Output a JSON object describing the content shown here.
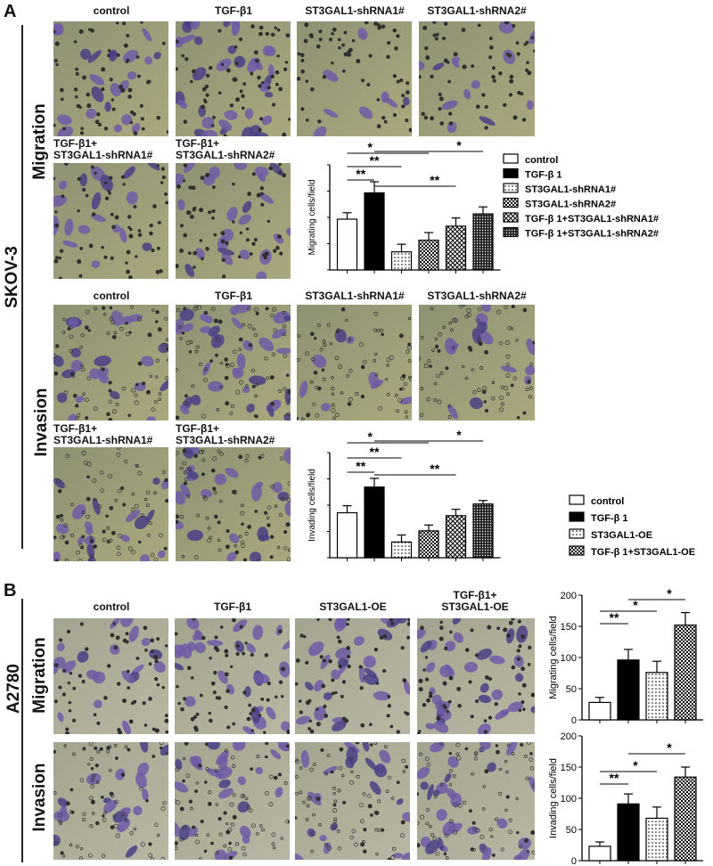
{
  "colors": {
    "bg_a": "#8e9273",
    "bg_b": "#aaa87e",
    "cell": "#6e5aa6",
    "cell_dark": "#4b3f86",
    "dot": "#2f2f2f",
    "bar_black": "#000000"
  },
  "panelA": {
    "letter": "A",
    "cell_line": "SKOV-3",
    "migration": {
      "label": "Migration",
      "images": [
        {
          "label": "control"
        },
        {
          "label": "TGF-β1"
        },
        {
          "label": "ST3GAL1-shRNA1#"
        },
        {
          "label": "ST3GAL1-shRNA2#"
        },
        {
          "label": "TGF-β1+",
          "label2": "ST3GAL1-shRNA1#"
        },
        {
          "label": "TGF-β1+",
          "label2": "ST3GAL1-shRNA2#"
        }
      ]
    },
    "invasion": {
      "label": "Invasion",
      "images": [
        {
          "label": "control"
        },
        {
          "label": "TGF-β1"
        },
        {
          "label": "ST3GAL1-shRNA1#"
        },
        {
          "label": "ST3GAL1-shRNA2#"
        },
        {
          "label": "TGF-β1+",
          "label2": "ST3GAL1-shRNA1#"
        },
        {
          "label": "TGF-β1+",
          "label2": "ST3GAL1-shRNA2#"
        }
      ]
    }
  },
  "panelB": {
    "letter": "B",
    "cell_line": "A2780",
    "migration_label": "Migration",
    "invasion_label": "Invasion",
    "images": [
      {
        "label": "control"
      },
      {
        "label": "TGF-β1"
      },
      {
        "label": "ST3GAL1-OE"
      },
      {
        "label": "TGF-β1+",
        "label2": "ST3GAL1-OE"
      }
    ]
  },
  "chart_data": [
    {
      "type": "bar",
      "ylabel": "Migrating cells/field",
      "categories": [
        "control",
        "TGF-β 1",
        "ST3GAL1-shRNA1#",
        "ST3GAL1-shRNA2#",
        "TGF-β 1+ST3GAL1-shRNA1#",
        "TGF-β 1+ST3GAL1-shRNA2#"
      ],
      "values": [
        87,
        132,
        31,
        51,
        75,
        96
      ],
      "errors": [
        11,
        19,
        13,
        13,
        14,
        12
      ],
      "fills": [
        "white",
        "black",
        "dots",
        "checker",
        "cross",
        "dense"
      ],
      "ylim": [
        0,
        180
      ],
      "yticks": [],
      "legend": [
        "control",
        "TGF-β 1",
        "ST3GAL1-shRNA1#",
        "ST3GAL1-shRNA2#",
        "TGF-β 1+ST3GAL1-shRNA1#",
        "TGF-β 1+ST3GAL1-shRNA2#"
      ],
      "legend_placement": "right",
      "significance": [
        {
          "from": 0,
          "to": 1,
          "label": "**"
        },
        {
          "from": 0,
          "to": 2,
          "label": "**"
        },
        {
          "from": 0,
          "to": 3,
          "label": "*"
        },
        {
          "from": 1,
          "to": 4,
          "label": "**"
        },
        {
          "from": 1,
          "to": 5,
          "label": "*"
        }
      ]
    },
    {
      "type": "bar",
      "ylabel": "Invading cells/field",
      "categories": [
        "control",
        "TGF-β 1",
        "ST3GAL1-shRNA1#",
        "ST3GAL1-shRNA2#",
        "TGF-β 1+ST3GAL1-shRNA1#",
        "TGF-β 1+ST3GAL1-shRNA2#"
      ],
      "values": [
        77,
        121,
        27,
        46,
        72,
        92
      ],
      "errors": [
        12,
        15,
        12,
        10,
        11,
        6
      ],
      "fills": [
        "white",
        "black",
        "dots",
        "checker",
        "cross",
        "dense"
      ],
      "ylim": [
        0,
        180
      ],
      "yticks": [],
      "significance": [
        {
          "from": 0,
          "to": 1,
          "label": "**"
        },
        {
          "from": 0,
          "to": 2,
          "label": "**"
        },
        {
          "from": 0,
          "to": 3,
          "label": "*"
        },
        {
          "from": 1,
          "to": 4,
          "label": "**"
        },
        {
          "from": 1,
          "to": 5,
          "label": "*"
        }
      ]
    },
    {
      "type": "bar",
      "ylabel": "Migrating cells/field",
      "categories": [
        "control",
        "TGF-β 1",
        "ST3GAL1-OE",
        "TGF-β 1+ST3GAL1-OE"
      ],
      "values": [
        28,
        96,
        76,
        152
      ],
      "errors": [
        8,
        17,
        18,
        20
      ],
      "fills": [
        "white",
        "black",
        "dots",
        "checker"
      ],
      "ylim": [
        0,
        200
      ],
      "yticks": [
        0,
        50,
        100,
        150,
        200
      ],
      "legend": [
        "control",
        "TGF-β 1",
        "ST3GAL1-OE",
        "TGF-β 1+ST3GAL1-OE"
      ],
      "legend_placement": "top",
      "significance": [
        {
          "from": 0,
          "to": 1,
          "label": "**"
        },
        {
          "from": 0,
          "to": 2,
          "label": "*"
        },
        {
          "from": 1,
          "to": 3,
          "label": "*"
        }
      ]
    },
    {
      "type": "bar",
      "ylabel": "Invading cells/field",
      "categories": [
        "control",
        "TGF-β 1",
        "ST3GAL1-OE",
        "TGF-β 1+ST3GAL1-OE"
      ],
      "values": [
        23,
        91,
        68,
        134
      ],
      "errors": [
        7,
        16,
        18,
        16
      ],
      "fills": [
        "white",
        "black",
        "dots",
        "checker"
      ],
      "ylim": [
        0,
        200
      ],
      "yticks": [
        0,
        50,
        100,
        150,
        200
      ],
      "significance": [
        {
          "from": 0,
          "to": 1,
          "label": "**"
        },
        {
          "from": 0,
          "to": 2,
          "label": "*"
        },
        {
          "from": 1,
          "to": 3,
          "label": "*"
        }
      ]
    }
  ]
}
